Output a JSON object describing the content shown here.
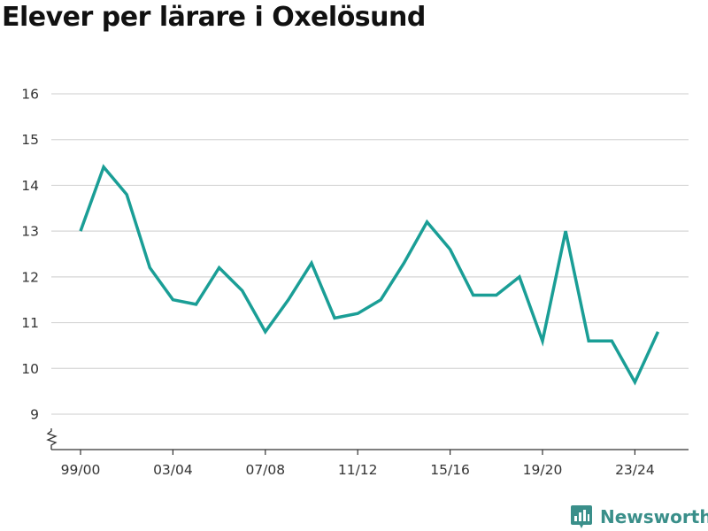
{
  "colors": {
    "line": "#1a9e96",
    "grid": "#d6d6d6",
    "axis": "#333333",
    "brand": "#3a8f8a"
  },
  "brand": {
    "name": "Newsworthy",
    "icon": "newsworthy-logo-icon"
  },
  "chart_data": {
    "type": "line",
    "title": "Elever per lärare i Oxelösund",
    "xlabel": "",
    "ylabel": "",
    "x": [
      "99/00",
      "00/01",
      "01/02",
      "02/03",
      "03/04",
      "04/05",
      "05/06",
      "06/07",
      "07/08",
      "08/09",
      "09/10",
      "10/11",
      "11/12",
      "12/13",
      "13/14",
      "14/15",
      "15/16",
      "16/17",
      "17/18",
      "18/19",
      "19/20",
      "20/21",
      "21/22",
      "22/23",
      "23/24",
      "24/25"
    ],
    "series": [
      {
        "values": [
          13.0,
          14.4,
          13.8,
          12.2,
          11.5,
          11.4,
          12.2,
          11.7,
          10.8,
          11.5,
          12.3,
          11.1,
          11.2,
          11.5,
          12.3,
          13.2,
          12.6,
          11.6,
          11.6,
          12.0,
          10.6,
          13.0,
          10.6,
          10.6,
          9.7,
          10.8
        ]
      }
    ],
    "xtick_labels": [
      "99/00",
      "03/04",
      "07/08",
      "11/12",
      "15/16",
      "19/20",
      "23/24"
    ],
    "ytick_labels": [
      "9",
      "10",
      "11",
      "12",
      "13",
      "14",
      "15",
      "16"
    ],
    "ylim": [
      9,
      16
    ],
    "grid": true,
    "broken_y_axis": true,
    "legend": "none"
  }
}
